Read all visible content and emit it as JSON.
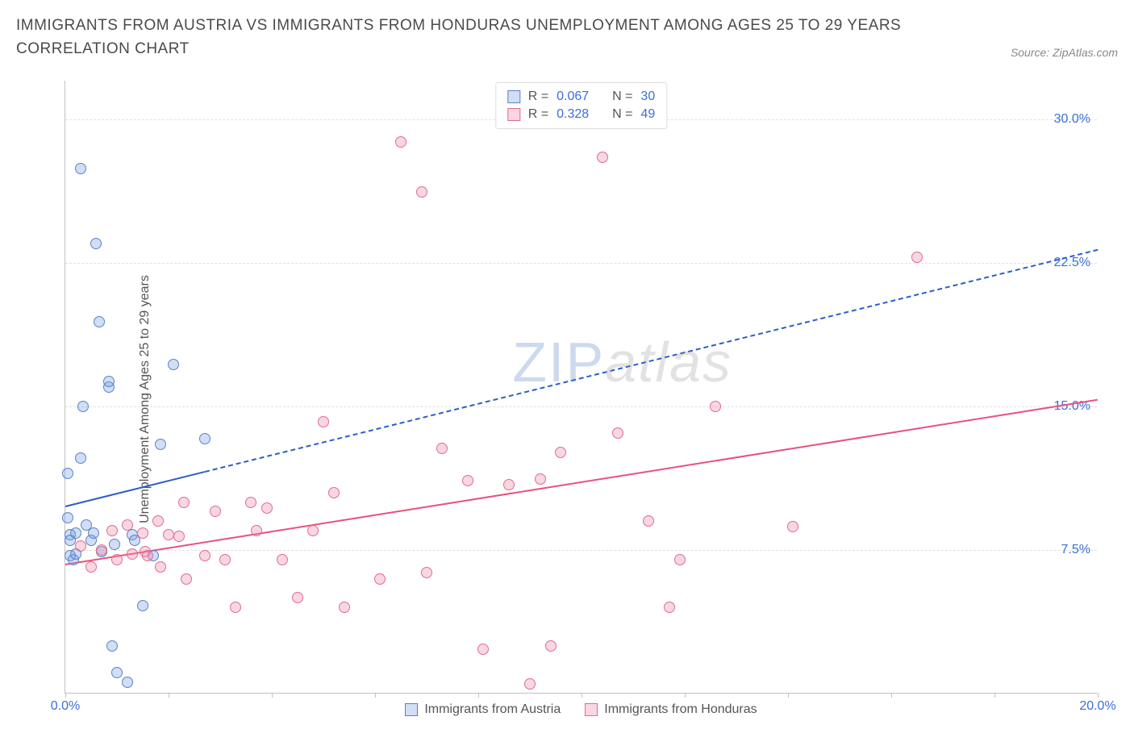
{
  "title": "IMMIGRANTS FROM AUSTRIA VS IMMIGRANTS FROM HONDURAS UNEMPLOYMENT AMONG AGES 25 TO 29 YEARS CORRELATION CHART",
  "source_label": "Source: ZipAtlas.com",
  "chart": {
    "type": "scatter",
    "y_axis_label": "Unemployment Among Ages 25 to 29 years",
    "background_color": "#ffffff",
    "grid_color": "#e0e0e0",
    "axis_color": "#c0c0c0",
    "tick_label_color": "#3a6fd8",
    "watermark": {
      "zip": "ZIP",
      "atlas": "atlas"
    },
    "xlim": [
      0,
      20
    ],
    "ylim": [
      0,
      32
    ],
    "x_ticks": [
      0,
      2,
      4,
      6,
      8,
      10,
      12,
      14,
      16,
      18,
      20
    ],
    "x_tick_labels": {
      "0": "0.0%",
      "20": "20.0%"
    },
    "y_ticks": [
      7.5,
      15.0,
      22.5,
      30.0
    ],
    "y_tick_labels": [
      "7.5%",
      "15.0%",
      "22.5%",
      "30.0%"
    ],
    "marker_radius": 7,
    "series": [
      {
        "name": "Immigrants from Austria",
        "fill": "rgba(120, 160, 230, 0.35)",
        "stroke": "#5a82c8",
        "trend_color": "#2a5fc8",
        "R": "0.067",
        "N": "30",
        "trend": {
          "x1": 0,
          "y1": 9.8,
          "x2": 20,
          "y2": 23.2,
          "solid_until_x": 2.7
        },
        "points": [
          [
            0.05,
            11.5
          ],
          [
            0.05,
            9.2
          ],
          [
            0.1,
            8.3
          ],
          [
            0.1,
            8.0
          ],
          [
            0.1,
            7.2
          ],
          [
            0.15,
            7.0
          ],
          [
            0.2,
            8.4
          ],
          [
            0.2,
            7.3
          ],
          [
            0.3,
            27.4
          ],
          [
            0.3,
            12.3
          ],
          [
            0.35,
            15.0
          ],
          [
            0.5,
            8.0
          ],
          [
            0.55,
            8.4
          ],
          [
            0.6,
            23.5
          ],
          [
            0.65,
            19.4
          ],
          [
            0.7,
            7.4
          ],
          [
            0.85,
            16.0
          ],
          [
            0.85,
            16.3
          ],
          [
            0.9,
            2.5
          ],
          [
            0.95,
            7.8
          ],
          [
            1.0,
            1.1
          ],
          [
            1.2,
            0.6
          ],
          [
            1.3,
            8.3
          ],
          [
            1.35,
            8.0
          ],
          [
            1.5,
            4.6
          ],
          [
            1.7,
            7.2
          ],
          [
            1.85,
            13.0
          ],
          [
            2.1,
            17.2
          ],
          [
            2.7,
            13.3
          ],
          [
            0.4,
            8.8
          ]
        ]
      },
      {
        "name": "Immigrants from Honduras",
        "fill": "rgba(235, 140, 170, 0.35)",
        "stroke": "#e46a8f",
        "trend_color": "#e8517c",
        "R": "0.328",
        "N": "49",
        "trend": {
          "x1": 0,
          "y1": 6.8,
          "x2": 20,
          "y2": 15.4,
          "solid_until_x": 20
        },
        "points": [
          [
            0.3,
            7.7
          ],
          [
            0.5,
            6.6
          ],
          [
            0.7,
            7.5
          ],
          [
            0.9,
            8.5
          ],
          [
            1.0,
            7.0
          ],
          [
            1.2,
            8.8
          ],
          [
            1.3,
            7.3
          ],
          [
            1.5,
            8.4
          ],
          [
            1.55,
            7.4
          ],
          [
            1.6,
            7.2
          ],
          [
            1.8,
            9.0
          ],
          [
            1.85,
            6.6
          ],
          [
            2.0,
            8.3
          ],
          [
            2.2,
            8.2
          ],
          [
            2.3,
            10.0
          ],
          [
            2.35,
            6.0
          ],
          [
            2.7,
            7.2
          ],
          [
            2.9,
            9.5
          ],
          [
            3.1,
            7.0
          ],
          [
            3.3,
            4.5
          ],
          [
            3.6,
            10.0
          ],
          [
            3.7,
            8.5
          ],
          [
            3.9,
            9.7
          ],
          [
            4.2,
            7.0
          ],
          [
            4.5,
            5.0
          ],
          [
            4.8,
            8.5
          ],
          [
            5.0,
            14.2
          ],
          [
            5.2,
            10.5
          ],
          [
            5.4,
            4.5
          ],
          [
            6.1,
            6.0
          ],
          [
            6.5,
            28.8
          ],
          [
            6.9,
            26.2
          ],
          [
            7.0,
            6.3
          ],
          [
            7.3,
            12.8
          ],
          [
            7.8,
            11.1
          ],
          [
            8.1,
            2.3
          ],
          [
            8.6,
            10.9
          ],
          [
            9.0,
            0.5
          ],
          [
            9.2,
            11.2
          ],
          [
            9.4,
            2.5
          ],
          [
            9.6,
            12.6
          ],
          [
            10.4,
            28.0
          ],
          [
            10.7,
            13.6
          ],
          [
            11.3,
            9.0
          ],
          [
            11.7,
            4.5
          ],
          [
            11.9,
            7.0
          ],
          [
            12.6,
            15.0
          ],
          [
            14.1,
            8.7
          ],
          [
            16.5,
            22.8
          ]
        ]
      }
    ]
  }
}
